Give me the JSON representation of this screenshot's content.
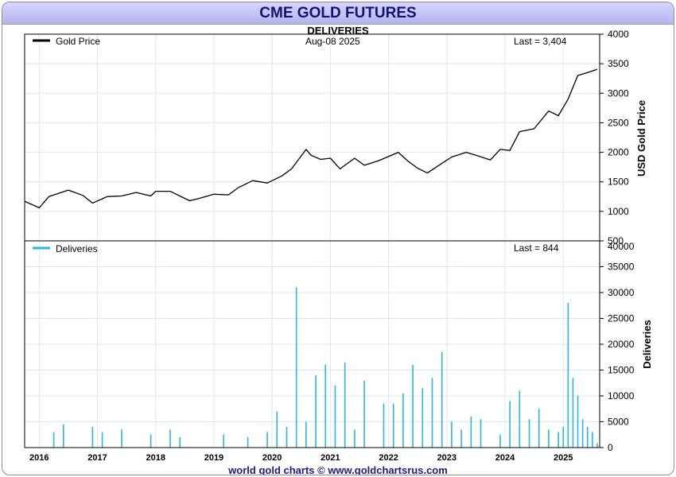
{
  "title": "CME GOLD FUTURES",
  "subtitle": "DELIVERIES",
  "footer": "world gold charts © www.goldchartsrus.com",
  "chart_data": [
    {
      "type": "line",
      "date_label": "Aug-08  2025",
      "last_label": "Last = 3,404",
      "legend": "Gold Price",
      "ylabel": "USD Gold Price",
      "ylim": [
        500,
        4000
      ],
      "yticks": [
        "4000",
        "3500",
        "3000",
        "2500",
        "2000",
        "1500",
        "1000",
        "500"
      ],
      "grid": true,
      "legend_position": "top-left",
      "color": "#000000",
      "series": [
        {
          "name": "Gold Price",
          "x": [
            "2015-10",
            "2016-01",
            "2016-03",
            "2016-07",
            "2016-10",
            "2016-12",
            "2017-03",
            "2017-06",
            "2017-09",
            "2017-12",
            "2018-01",
            "2018-04",
            "2018-08",
            "2018-10",
            "2019-01",
            "2019-04",
            "2019-06",
            "2019-09",
            "2019-12",
            "2020-03",
            "2020-05",
            "2020-08",
            "2020-09",
            "2020-11",
            "2021-01",
            "2021-03",
            "2021-06",
            "2021-08",
            "2021-11",
            "2022-03",
            "2022-05",
            "2022-07",
            "2022-09",
            "2022-11",
            "2023-02",
            "2023-05",
            "2023-07",
            "2023-10",
            "2023-12",
            "2024-02",
            "2024-04",
            "2024-07",
            "2024-10",
            "2024-12",
            "2025-02",
            "2025-04",
            "2025-06",
            "2025-08"
          ],
          "values": [
            1170,
            1060,
            1250,
            1360,
            1270,
            1140,
            1250,
            1260,
            1320,
            1260,
            1340,
            1340,
            1180,
            1220,
            1290,
            1280,
            1400,
            1520,
            1480,
            1600,
            1720,
            2050,
            1950,
            1880,
            1900,
            1720,
            1900,
            1780,
            1860,
            2000,
            1850,
            1730,
            1650,
            1760,
            1920,
            2000,
            1950,
            1870,
            2050,
            2030,
            2350,
            2400,
            2700,
            2620,
            2900,
            3300,
            3350,
            3404
          ]
        }
      ]
    },
    {
      "type": "bar",
      "last_label": "Last = 844",
      "legend": "Deliveries",
      "ylabel": "Deliveries",
      "ylim": [
        0,
        40000
      ],
      "yticks": [
        "40000",
        "35000",
        "30000",
        "25000",
        "20000",
        "15000",
        "10000",
        "5000",
        "0"
      ],
      "grid": true,
      "legend_position": "top-left",
      "color": "#29b6e0",
      "x_start": "2015-10",
      "x_end": "2025-08",
      "xticks": [
        "2016",
        "2017",
        "2018",
        "2019",
        "2020",
        "2021",
        "2022",
        "2023",
        "2024",
        "2025"
      ],
      "series": [
        {
          "name": "Deliveries",
          "x": [
            "2016-04",
            "2016-06",
            "2016-12",
            "2017-02",
            "2017-06",
            "2017-12",
            "2018-04",
            "2018-06",
            "2019-03",
            "2019-08",
            "2019-12",
            "2020-02",
            "2020-04",
            "2020-06",
            "2020-08",
            "2020-10",
            "2020-12",
            "2021-02",
            "2021-04",
            "2021-06",
            "2021-08",
            "2021-12",
            "2022-02",
            "2022-04",
            "2022-06",
            "2022-08",
            "2022-10",
            "2022-12",
            "2023-02",
            "2023-04",
            "2023-06",
            "2023-08",
            "2023-12",
            "2024-02",
            "2024-04",
            "2024-06",
            "2024-08",
            "2024-10",
            "2024-12",
            "2025-01",
            "2025-02",
            "2025-03",
            "2025-04",
            "2025-05",
            "2025-06",
            "2025-07",
            "2025-08"
          ],
          "values": [
            3000,
            4500,
            4000,
            3000,
            3500,
            2500,
            3500,
            2000,
            2500,
            2000,
            3000,
            7000,
            4000,
            31000,
            5000,
            14000,
            16000,
            12000,
            16500,
            3500,
            13000,
            8500,
            8500,
            10500,
            16000,
            11500,
            13500,
            18500,
            5000,
            3500,
            6000,
            5500,
            2500,
            9000,
            11000,
            5500,
            7500,
            3500,
            3000,
            4000,
            28000,
            13500,
            10000,
            5500,
            4000,
            3000,
            844
          ]
        }
      ]
    }
  ]
}
